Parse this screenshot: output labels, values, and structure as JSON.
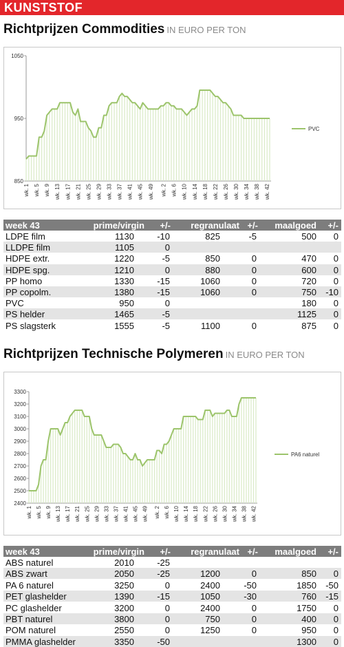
{
  "header": {
    "title": "KUNSTSTOF"
  },
  "chart_data": [
    {
      "type": "line",
      "title": "Richtprijzen Commodities",
      "subtitle": "IN EURO PER TON",
      "categories": [
        "wk. 1",
        null,
        null,
        null,
        "wk. 5",
        null,
        null,
        null,
        "wk. 9",
        null,
        null,
        null,
        "wk. 13",
        null,
        null,
        null,
        "wk. 17",
        null,
        null,
        null,
        "wk. 21",
        null,
        null,
        null,
        "wk. 25",
        null,
        null,
        null,
        "wk. 29",
        null,
        null,
        null,
        "wk. 33",
        null,
        null,
        null,
        "wk. 37",
        null,
        null,
        null,
        "wk. 41",
        null,
        null,
        null,
        "wk. 45",
        null,
        null,
        null,
        "wk. 49",
        null,
        null,
        null,
        null,
        "wk. 2",
        null,
        null,
        null,
        "wk. 6",
        null,
        null,
        null,
        "wk. 10",
        null,
        null,
        null,
        "wk. 14",
        null,
        null,
        null,
        "wk. 18",
        null,
        null,
        null,
        "wk. 22",
        null,
        null,
        null,
        "wk. 26",
        null,
        null,
        null,
        "wk. 30",
        null,
        null,
        null,
        "wk. 34",
        null,
        null,
        null,
        "wk. 38",
        null,
        null,
        null,
        "wk. 42",
        null
      ],
      "series": [
        {
          "name": "PVC",
          "color": "#9cc46b",
          "values": [
            885,
            890,
            890,
            890,
            890,
            920,
            920,
            930,
            955,
            960,
            965,
            965,
            965,
            975,
            975,
            975,
            975,
            975,
            960,
            955,
            965,
            945,
            945,
            945,
            935,
            930,
            920,
            920,
            935,
            935,
            955,
            955,
            970,
            975,
            975,
            975,
            985,
            990,
            985,
            985,
            980,
            975,
            975,
            970,
            965,
            975,
            970,
            965,
            965,
            965,
            965,
            965,
            970,
            970,
            975,
            975,
            970,
            970,
            965,
            965,
            965,
            960,
            955,
            960,
            965,
            965,
            970,
            995,
            995,
            995,
            995,
            995,
            990,
            985,
            985,
            980,
            975,
            975,
            970,
            965,
            955,
            955,
            955,
            955,
            950,
            950,
            950,
            950,
            950,
            950,
            950,
            950,
            950,
            950,
            950
          ]
        }
      ],
      "ylim": [
        850,
        1050
      ],
      "yticks": [
        850,
        950,
        1050
      ],
      "grid": false,
      "legend": "right"
    },
    {
      "type": "line",
      "title": "Richtprijzen Technische Polymeren",
      "subtitle": "IN EURO PER TON",
      "categories": [
        "wk. 1",
        null,
        null,
        null,
        "wk. 5",
        null,
        null,
        null,
        "wk. 9",
        null,
        null,
        null,
        "wk. 13",
        null,
        null,
        null,
        "wk. 17",
        null,
        null,
        null,
        "wk. 21",
        null,
        null,
        null,
        "wk. 25",
        null,
        null,
        null,
        "wk. 29",
        null,
        null,
        null,
        "wk. 33",
        null,
        null,
        null,
        "wk. 37",
        null,
        null,
        null,
        "wk. 41",
        null,
        null,
        null,
        "wk. 45",
        null,
        null,
        null,
        "wk. 49",
        null,
        null,
        null,
        null,
        "wk. 2",
        null,
        null,
        null,
        "wk. 6",
        null,
        null,
        null,
        "wk. 10",
        null,
        null,
        null,
        "wk. 14",
        null,
        null,
        null,
        "wk. 18",
        null,
        null,
        null,
        "wk. 22",
        null,
        null,
        null,
        "wk. 26",
        null,
        null,
        null,
        "wk. 30",
        null,
        null,
        null,
        "wk. 34",
        null,
        null,
        null,
        "wk. 38",
        null,
        null,
        null,
        "wk. 42",
        null
      ],
      "series": [
        {
          "name": "PA6 naturel",
          "color": "#9cc46b",
          "values": [
            2500,
            2500,
            2500,
            2500,
            2550,
            2700,
            2750,
            2750,
            2900,
            3000,
            3000,
            3000,
            3000,
            2950,
            3000,
            3050,
            3050,
            3100,
            3125,
            3150,
            3150,
            3150,
            3150,
            3100,
            3100,
            3100,
            3000,
            2950,
            2950,
            2950,
            2950,
            2900,
            2850,
            2850,
            2850,
            2875,
            2875,
            2875,
            2850,
            2800,
            2800,
            2775,
            2750,
            2750,
            2800,
            2750,
            2750,
            2700,
            2725,
            2750,
            2750,
            2750,
            2750,
            2825,
            2825,
            2800,
            2875,
            2875,
            2900,
            2950,
            3000,
            3000,
            3000,
            3000,
            3100,
            3100,
            3100,
            3100,
            3100,
            3100,
            3075,
            3075,
            3075,
            3150,
            3150,
            3150,
            3100,
            3125,
            3125,
            3125,
            3125,
            3125,
            3150,
            3150,
            3100,
            3100,
            3100,
            3200,
            3250,
            3250,
            3250,
            3250,
            3250,
            3250,
            3250
          ]
        }
      ],
      "ylim": [
        2400,
        3300
      ],
      "yticks": [
        2400,
        2500,
        2600,
        2700,
        2800,
        2900,
        3000,
        3100,
        3200,
        3300
      ],
      "grid": false,
      "legend": "right"
    }
  ],
  "tables": [
    {
      "columns": [
        "week 43",
        "prime/virgin",
        "+/-",
        "regranulaat",
        "+/-",
        "maalgoed",
        "+/-"
      ],
      "rows": [
        [
          "LDPE film",
          1130,
          -10,
          825,
          -5,
          500,
          0
        ],
        [
          "LLDPE film",
          1105,
          0,
          null,
          null,
          null,
          null
        ],
        [
          "HDPE extr.",
          1220,
          -5,
          850,
          0,
          470,
          0
        ],
        [
          "HDPE spg.",
          1210,
          0,
          880,
          0,
          600,
          0
        ],
        [
          "PP homo",
          1330,
          -15,
          1060,
          0,
          720,
          0
        ],
        [
          "PP copolm.",
          1380,
          -15,
          1060,
          0,
          750,
          -10
        ],
        [
          "PVC",
          950,
          0,
          null,
          null,
          180,
          0
        ],
        [
          "PS helder",
          1465,
          -5,
          null,
          null,
          1125,
          0
        ],
        [
          "PS slagsterk",
          1555,
          -5,
          1100,
          0,
          875,
          0
        ]
      ]
    },
    {
      "columns": [
        "week 43",
        "prime/virgin",
        "+/-",
        "regranulaat",
        "+/-",
        "maalgoed",
        "+/-"
      ],
      "rows": [
        [
          "ABS naturel",
          2010,
          -25,
          null,
          null,
          null,
          null
        ],
        [
          "ABS zwart",
          2050,
          -25,
          1200,
          0,
          850,
          0
        ],
        [
          "PA 6 naturel",
          3250,
          0,
          2400,
          -50,
          1850,
          -50
        ],
        [
          "PET glashelder",
          1390,
          -15,
          1050,
          -30,
          760,
          -15
        ],
        [
          "PC glashelder",
          3200,
          0,
          2400,
          0,
          1750,
          0
        ],
        [
          "PBT naturel",
          3800,
          0,
          750,
          0,
          400,
          0
        ],
        [
          "POM naturel",
          2550,
          0,
          1250,
          0,
          950,
          0
        ],
        [
          "PMMA glashelder",
          3350,
          -50,
          null,
          null,
          1300,
          0
        ]
      ]
    }
  ]
}
